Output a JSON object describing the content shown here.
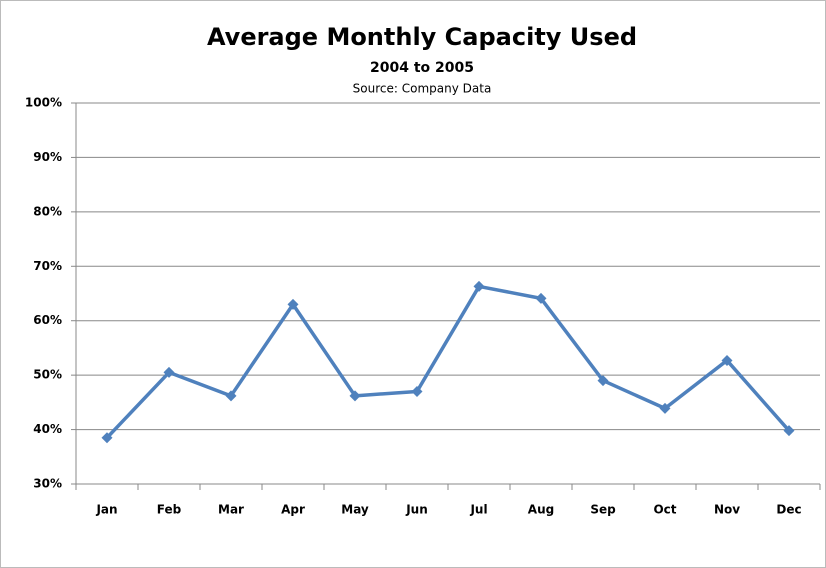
{
  "chart_data": {
    "type": "line",
    "title": "Average Monthly Capacity Used",
    "subtitle": "2004 to 2005",
    "source": "Source: Company Data",
    "categories": [
      "Jan",
      "Feb",
      "Mar",
      "Apr",
      "May",
      "Jun",
      "Jul",
      "Aug",
      "Sep",
      "Oct",
      "Nov",
      "Dec"
    ],
    "series": [
      {
        "name": "Capacity Used",
        "color": "#4f81bd",
        "values": [
          38.5,
          50.5,
          46.2,
          63,
          46.2,
          47,
          66.3,
          64.1,
          49,
          43.9,
          52.7,
          39.8
        ]
      }
    ],
    "ylim": [
      30,
      100
    ],
    "yticks": [
      {
        "value": 30,
        "label": "30%"
      },
      {
        "value": 40,
        "label": "40%"
      },
      {
        "value": 50,
        "label": "50%"
      },
      {
        "value": 60,
        "label": "60%"
      },
      {
        "value": 70,
        "label": "70%"
      },
      {
        "value": 80,
        "label": "80%"
      },
      {
        "value": 90,
        "label": "90%"
      },
      {
        "value": 100,
        "label": "100%"
      }
    ],
    "grid": true
  }
}
